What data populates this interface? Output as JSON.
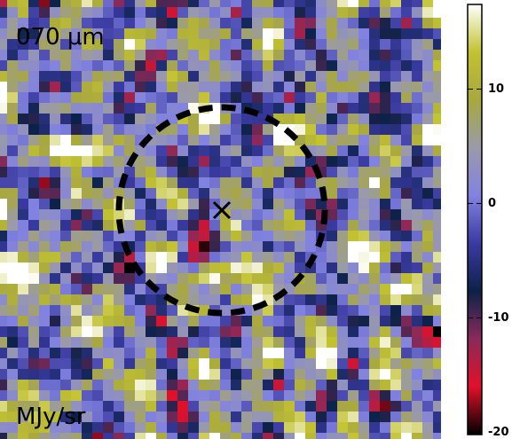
{
  "image": {
    "band_label": "070 μm",
    "unit_label": "MJy/sr"
  },
  "colorbar": {
    "clim": [
      -20.2,
      17.4
    ],
    "ticks": [
      10,
      0,
      -10,
      -20
    ],
    "colormap": [
      "#000000",
      "#e0102a",
      "#8a2a5a",
      "#0c2248",
      "#3a3aa0",
      "#8282e0",
      "#9a9aaa",
      "#a8a840",
      "#c2c232",
      "#ffffff"
    ]
  }
}
